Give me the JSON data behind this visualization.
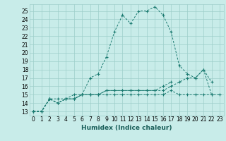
{
  "xlabel": "Humidex (Indice chaleur)",
  "bg_color": "#c8ece9",
  "grid_color": "#9ececa",
  "line_color": "#1a7a70",
  "xlim": [
    -0.5,
    23.5
  ],
  "ylim": [
    12.5,
    25.8
  ],
  "yticks": [
    13,
    14,
    15,
    16,
    17,
    18,
    19,
    20,
    21,
    22,
    23,
    24,
    25
  ],
  "xticks": [
    0,
    1,
    2,
    3,
    4,
    5,
    6,
    7,
    8,
    9,
    10,
    11,
    12,
    13,
    14,
    15,
    16,
    17,
    18,
    19,
    20,
    21,
    22,
    23
  ],
  "series": [
    [
      13.0,
      13.0,
      14.5,
      14.0,
      14.5,
      15.0,
      15.0,
      17.0,
      17.5,
      19.5,
      22.5,
      24.5,
      23.5,
      25.0,
      25.0,
      25.5,
      24.5,
      22.5,
      18.5,
      17.5,
      17.0,
      18.0,
      16.5,
      null
    ],
    [
      13.0,
      13.0,
      14.5,
      14.5,
      14.5,
      14.5,
      15.0,
      15.0,
      15.0,
      15.5,
      15.5,
      15.5,
      15.5,
      15.5,
      15.5,
      15.5,
      15.5,
      16.0,
      16.5,
      17.0,
      17.0,
      18.0,
      15.0,
      null
    ],
    [
      13.0,
      13.0,
      14.5,
      14.0,
      14.5,
      14.5,
      15.0,
      15.0,
      15.0,
      15.5,
      15.5,
      15.5,
      15.5,
      15.5,
      15.5,
      15.5,
      16.0,
      16.5,
      null,
      null,
      null,
      null,
      null,
      null
    ],
    [
      13.0,
      13.0,
      14.5,
      14.0,
      14.5,
      14.5,
      15.0,
      15.0,
      15.0,
      15.0,
      15.0,
      15.0,
      15.0,
      15.0,
      15.0,
      15.0,
      15.0,
      15.5,
      15.0,
      15.0,
      15.0,
      15.0,
      15.0,
      15.0
    ]
  ],
  "tick_fontsize": 5.5,
  "xlabel_fontsize": 6.5
}
